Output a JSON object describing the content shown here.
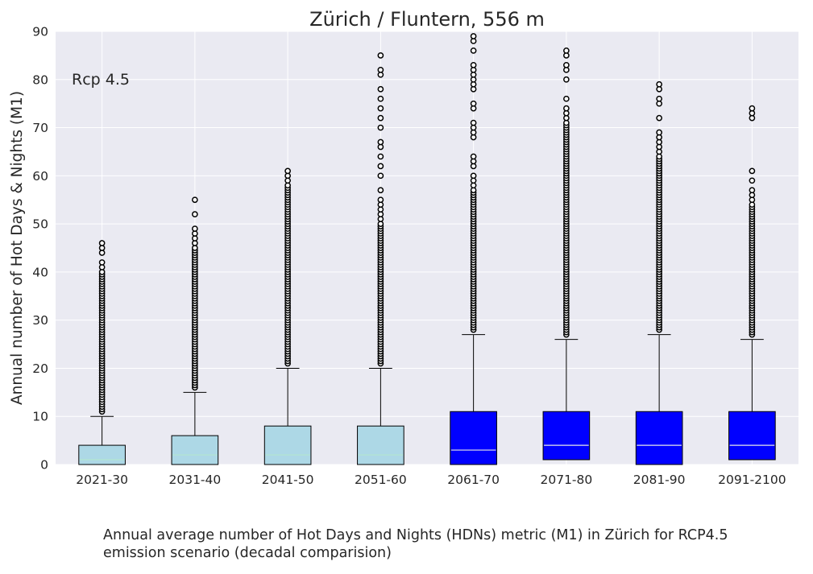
{
  "chart_data": {
    "type": "box",
    "title": "Zürich / Fluntern, 556 m",
    "ylabel": "Annual number of Hot Days & Nights (M1)",
    "xlabel": "",
    "ylim": [
      0,
      90
    ],
    "yticks": [
      "0",
      "10",
      "20",
      "30",
      "40",
      "50",
      "60",
      "70",
      "80",
      "90"
    ],
    "grid": true,
    "annotation": "Rcp 4.5",
    "colors": {
      "background": "#EAEAF2",
      "early": "#ADD8E6",
      "late": "#0000FF",
      "grid": "#FFFFFF",
      "flier_edge": "#000000",
      "flier_fill": "#FFFFFF"
    },
    "categories": [
      "2021-30",
      "2031-40",
      "2041-50",
      "2051-60",
      "2061-70",
      "2071-80",
      "2081-90",
      "2091-2100"
    ],
    "boxes": [
      {
        "label": "2021-30",
        "whislo": 0,
        "q1": 0,
        "med": 1,
        "q3": 4,
        "whishi": 10,
        "color": "early",
        "fliers": [
          11,
          11.5,
          12,
          12.5,
          13,
          13.5,
          14,
          14.5,
          15,
          15.5,
          16,
          16.5,
          17,
          17.5,
          18,
          18.5,
          19,
          19.5,
          20,
          20.5,
          21,
          21.5,
          22,
          22.5,
          23,
          23.5,
          24,
          24.5,
          25,
          25.5,
          26,
          26.5,
          27,
          27.5,
          28,
          28.5,
          29,
          29.5,
          30,
          30.5,
          31,
          31.5,
          32,
          32.5,
          33,
          33.5,
          34,
          34.5,
          35,
          35.5,
          36,
          36.5,
          37,
          37.5,
          38,
          38.5,
          39,
          39.5,
          40,
          41,
          42,
          44,
          45,
          46
        ]
      },
      {
        "label": "2031-40",
        "whislo": 0,
        "q1": 0,
        "med": 2,
        "q3": 6,
        "whishi": 15,
        "color": "early",
        "fliers": [
          16,
          16.5,
          17,
          17.5,
          18,
          18.5,
          19,
          19.5,
          20,
          20.5,
          21,
          21.5,
          22,
          22.5,
          23,
          23.5,
          24,
          24.5,
          25,
          25.5,
          26,
          26.5,
          27,
          27.5,
          28,
          28.5,
          29,
          29.5,
          30,
          30.5,
          31,
          31.5,
          32,
          32.5,
          33,
          33.5,
          34,
          34.5,
          35,
          35.5,
          36,
          36.5,
          37,
          37.5,
          38,
          38.5,
          39,
          39.5,
          40,
          40.5,
          41,
          41.5,
          42,
          42.5,
          43,
          43.5,
          44,
          44.5,
          45,
          46,
          47,
          48,
          49,
          52,
          55
        ]
      },
      {
        "label": "2041-50",
        "whislo": 0,
        "q1": 0,
        "med": 2,
        "q3": 8,
        "whishi": 20,
        "color": "early",
        "fliers": [
          21,
          21.5,
          22,
          22.5,
          23,
          23.5,
          24,
          24.5,
          25,
          25.5,
          26,
          26.5,
          27,
          27.5,
          28,
          28.5,
          29,
          29.5,
          30,
          30.5,
          31,
          31.5,
          32,
          32.5,
          33,
          33.5,
          34,
          34.5,
          35,
          35.5,
          36,
          36.5,
          37,
          37.5,
          38,
          38.5,
          39,
          39.5,
          40,
          40.5,
          41,
          41.5,
          42,
          42.5,
          43,
          43.5,
          44,
          44.5,
          45,
          45.5,
          46,
          46.5,
          47,
          47.5,
          48,
          48.5,
          49,
          49.5,
          50,
          50.5,
          51,
          51.5,
          52,
          52.5,
          53,
          53.5,
          54,
          54.5,
          55,
          55.5,
          56,
          56.5,
          57,
          57.5,
          58,
          59,
          60,
          61
        ]
      },
      {
        "label": "2051-60",
        "whislo": 0,
        "q1": 0,
        "med": 2,
        "q3": 8,
        "whishi": 20,
        "color": "early",
        "fliers": [
          21,
          21.5,
          22,
          22.5,
          23,
          23.5,
          24,
          24.5,
          25,
          25.5,
          26,
          26.5,
          27,
          27.5,
          28,
          28.5,
          29,
          29.5,
          30,
          30.5,
          31,
          31.5,
          32,
          32.5,
          33,
          33.5,
          34,
          34.5,
          35,
          35.5,
          36,
          36.5,
          37,
          37.5,
          38,
          38.5,
          39,
          39.5,
          40,
          40.5,
          41,
          41.5,
          42,
          42.5,
          43,
          43.5,
          44,
          44.5,
          45,
          45.5,
          46,
          46.5,
          47,
          47.5,
          48,
          48.5,
          49,
          49.5,
          50,
          51,
          52,
          53,
          54,
          55,
          57,
          60,
          62,
          64,
          66,
          67,
          70,
          72,
          74,
          76,
          78,
          81,
          82,
          85
        ]
      },
      {
        "label": "2061-70",
        "whislo": 0,
        "q1": 0,
        "med": 3,
        "q3": 11,
        "whishi": 27,
        "color": "late",
        "fliers": [
          28,
          28.5,
          29,
          29.5,
          30,
          30.5,
          31,
          31.5,
          32,
          32.5,
          33,
          33.5,
          34,
          34.5,
          35,
          35.5,
          36,
          36.5,
          37,
          37.5,
          38,
          38.5,
          39,
          39.5,
          40,
          40.5,
          41,
          41.5,
          42,
          42.5,
          43,
          43.5,
          44,
          44.5,
          45,
          45.5,
          46,
          46.5,
          47,
          47.5,
          48,
          48.5,
          49,
          49.5,
          50,
          50.5,
          51,
          51.5,
          52,
          52.5,
          53,
          53.5,
          54,
          54.5,
          55,
          55.5,
          56,
          56.5,
          57,
          58,
          59,
          60,
          62,
          63,
          64,
          68,
          69,
          70,
          71,
          74,
          75,
          78,
          79,
          80,
          81,
          82,
          83,
          86,
          88,
          89
        ]
      },
      {
        "label": "2071-80",
        "whislo": 1,
        "q1": 1,
        "med": 4,
        "q3": 11,
        "whishi": 26,
        "color": "late",
        "fliers": [
          27,
          27.5,
          28,
          28.5,
          29,
          29.5,
          30,
          30.5,
          31,
          31.5,
          32,
          32.5,
          33,
          33.5,
          34,
          34.5,
          35,
          35.5,
          36,
          36.5,
          37,
          37.5,
          38,
          38.5,
          39,
          39.5,
          40,
          40.5,
          41,
          41.5,
          42,
          42.5,
          43,
          43.5,
          44,
          44.5,
          45,
          45.5,
          46,
          46.5,
          47,
          47.5,
          48,
          48.5,
          49,
          49.5,
          50,
          50.5,
          51,
          51.5,
          52,
          52.5,
          53,
          53.5,
          54,
          54.5,
          55,
          55.5,
          56,
          56.5,
          57,
          57.5,
          58,
          58.5,
          59,
          59.5,
          60,
          60.5,
          61,
          61.5,
          62,
          62.5,
          63,
          63.5,
          64,
          64.5,
          65,
          65.5,
          66,
          66.5,
          67,
          67.5,
          68,
          68.5,
          69,
          69.5,
          70,
          70.5,
          71,
          72,
          73,
          74,
          76,
          80,
          82,
          83,
          85,
          86
        ]
      },
      {
        "label": "2081-90",
        "whislo": 0,
        "q1": 0,
        "med": 4,
        "q3": 11,
        "whishi": 27,
        "color": "late",
        "fliers": [
          28,
          28.5,
          29,
          29.5,
          30,
          30.5,
          31,
          31.5,
          32,
          32.5,
          33,
          33.5,
          34,
          34.5,
          35,
          35.5,
          36,
          36.5,
          37,
          37.5,
          38,
          38.5,
          39,
          39.5,
          40,
          40.5,
          41,
          41.5,
          42,
          42.5,
          43,
          43.5,
          44,
          44.5,
          45,
          45.5,
          46,
          46.5,
          47,
          47.5,
          48,
          48.5,
          49,
          49.5,
          50,
          50.5,
          51,
          51.5,
          52,
          52.5,
          53,
          53.5,
          54,
          54.5,
          55,
          55.5,
          56,
          56.5,
          57,
          57.5,
          58,
          58.5,
          59,
          59.5,
          60,
          60.5,
          61,
          61.5,
          62,
          62.5,
          63,
          63.5,
          64,
          65,
          66,
          67,
          68,
          69,
          72,
          75,
          76,
          78,
          79
        ]
      },
      {
        "label": "2091-2100",
        "whislo": 1,
        "q1": 1,
        "med": 4,
        "q3": 11,
        "whishi": 26,
        "color": "late",
        "fliers": [
          27,
          27.5,
          28,
          28.5,
          29,
          29.5,
          30,
          30.5,
          31,
          31.5,
          32,
          32.5,
          33,
          33.5,
          34,
          34.5,
          35,
          35.5,
          36,
          36.5,
          37,
          37.5,
          38,
          38.5,
          39,
          39.5,
          40,
          40.5,
          41,
          41.5,
          42,
          42.5,
          43,
          43.5,
          44,
          44.5,
          45,
          45.5,
          46,
          46.5,
          47,
          47.5,
          48,
          48.5,
          49,
          49.5,
          50,
          50.5,
          51,
          51.5,
          52,
          52.5,
          53,
          53.5,
          54,
          55,
          56,
          57,
          59,
          61,
          72,
          73,
          74
        ]
      }
    ]
  },
  "caption": {
    "line1": "Annual average number of Hot Days and Nights (HDNs) metric (M1) in Zürich for RCP4.5",
    "line2": "emission scenario (decadal comparision)"
  }
}
